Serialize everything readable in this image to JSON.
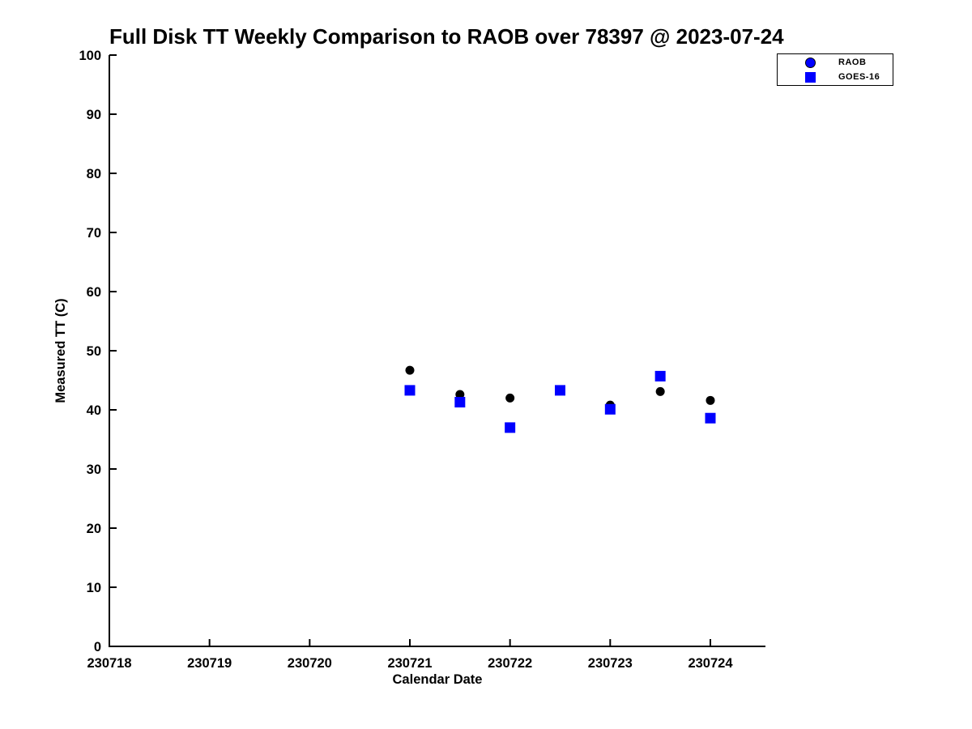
{
  "figure": {
    "background": "#ffffff"
  },
  "legend": {
    "items": [
      {
        "label": "RAOB",
        "marker": "circle",
        "fill": "#0000ff",
        "edge": "#000000"
      },
      {
        "label": "GOES-16",
        "marker": "square",
        "fill": "#0000ff",
        "edge": "#0000ff"
      }
    ]
  },
  "chart_data": {
    "type": "scatter",
    "title": "Full Disk TT Weekly Comparison to RAOB over 78397 @ 2023-07-24",
    "xlabel": "Calendar Date",
    "ylabel": "Measured TT (C)",
    "xlim": [
      230718,
      230724.55
    ],
    "ylim": [
      0,
      100
    ],
    "xticks": [
      230718,
      230719,
      230720,
      230721,
      230722,
      230723,
      230724
    ],
    "yticks": [
      0,
      10,
      20,
      30,
      40,
      50,
      60,
      70,
      80,
      90,
      100
    ],
    "grid": false,
    "legend_position": "top-right",
    "axis_color": "#000000",
    "series": [
      {
        "name": "RAOB",
        "marker": "circle",
        "color": "#000000",
        "points": [
          [
            230721.0,
            46.7
          ],
          [
            230721.5,
            42.6
          ],
          [
            230722.0,
            42.0
          ],
          [
            230722.5,
            43.3
          ],
          [
            230723.0,
            40.8
          ],
          [
            230723.5,
            43.1
          ],
          [
            230724.0,
            41.6
          ]
        ]
      },
      {
        "name": "GOES-16",
        "marker": "square",
        "color": "#0000ff",
        "points": [
          [
            230721.0,
            43.3
          ],
          [
            230721.5,
            41.3
          ],
          [
            230722.0,
            37.0
          ],
          [
            230722.5,
            43.3
          ],
          [
            230723.0,
            40.1
          ],
          [
            230723.5,
            45.7
          ],
          [
            230724.0,
            38.6
          ]
        ]
      }
    ]
  }
}
